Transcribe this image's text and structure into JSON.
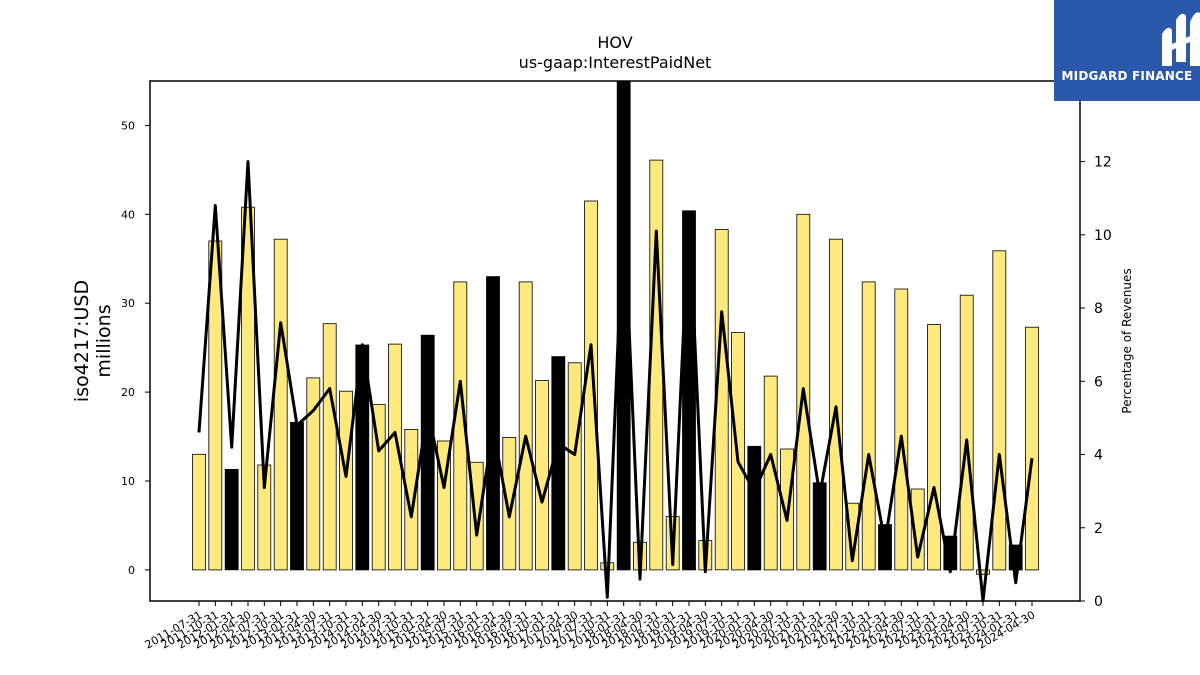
{
  "brand": {
    "name": "MIDGARD FINANCE",
    "logo_icon": "midgard-mh-monogram-icon",
    "background": "#2b58ab"
  },
  "chart_data": {
    "type": "bar",
    "title": "HOV",
    "subtitle": "us-gaap:InterestPaidNet",
    "ylabel": "iso4217:USD\nmillions",
    "y2label": "Percentage of Revenues",
    "ylim": [
      -3.5,
      55
    ],
    "y2lim": [
      0,
      14.2
    ],
    "yticks": [
      0,
      10,
      20,
      30,
      40,
      50
    ],
    "y2ticks": [
      0,
      2,
      4,
      6,
      8,
      10,
      12
    ],
    "grid": false,
    "legend": "none",
    "categories": [
      "2011-07-31",
      "2011-10-31",
      "2012-01-31",
      "2012-04-30",
      "2012-07-31",
      "2012-10-31",
      "2013-01-31",
      "2013-04-30",
      "2013-07-31",
      "2013-10-31",
      "2014-01-31",
      "2014-04-30",
      "2014-07-31",
      "2014-10-31",
      "2015-01-31",
      "2015-04-30",
      "2015-07-31",
      "2015-10-31",
      "2016-01-31",
      "2016-04-30",
      "2016-07-31",
      "2016-10-31",
      "2017-01-31",
      "2017-04-30",
      "2017-07-31",
      "2017-10-31",
      "2018-01-31",
      "2018-04-30",
      "2018-07-31",
      "2018-10-31",
      "2019-01-31",
      "2019-04-30",
      "2019-07-31",
      "2019-10-31",
      "2020-01-31",
      "2020-04-30",
      "2020-07-31",
      "2020-10-31",
      "2021-01-31",
      "2021-04-30",
      "2021-07-31",
      "2021-10-31",
      "2022-01-31",
      "2022-04-30",
      "2022-07-31",
      "2022-10-31",
      "2023-01-31",
      "2023-04-30",
      "2023-07-31",
      "2023-10-31",
      "2024-01-31",
      "2024-04-30"
    ],
    "series": [
      {
        "kind": "bar",
        "values": [
          13.0,
          37.0,
          11.3,
          40.8,
          11.8,
          37.2,
          16.6,
          21.6,
          27.7,
          20.1,
          25.3,
          18.6,
          25.4,
          15.8,
          26.4,
          14.5,
          32.4,
          12.1,
          33.0,
          14.9,
          32.4,
          21.3,
          24.0,
          23.3,
          41.5,
          0.8,
          55.5,
          3.1,
          46.1,
          6.0,
          40.4,
          3.3,
          38.3,
          26.7,
          13.9,
          21.8,
          13.6,
          40.0,
          9.8,
          37.2,
          7.5,
          32.4,
          5.1,
          31.6,
          9.1,
          27.6,
          3.8,
          30.9,
          -0.5,
          35.9,
          2.8,
          27.3
        ],
        "highlighted": [
          false,
          false,
          true,
          false,
          false,
          false,
          true,
          false,
          false,
          false,
          true,
          false,
          false,
          false,
          true,
          false,
          false,
          false,
          true,
          false,
          false,
          false,
          true,
          false,
          false,
          false,
          true,
          false,
          false,
          false,
          true,
          false,
          false,
          false,
          true,
          false,
          false,
          false,
          true,
          false,
          false,
          false,
          true,
          false,
          false,
          false,
          true,
          false,
          false,
          false,
          true,
          false
        ]
      },
      {
        "kind": "line",
        "axis": "right",
        "values": [
          4.6,
          10.8,
          4.2,
          12.0,
          3.1,
          7.6,
          4.8,
          5.2,
          5.8,
          3.4,
          7.0,
          4.1,
          4.6,
          2.3,
          5.2,
          3.1,
          6.0,
          1.8,
          4.7,
          2.3,
          4.5,
          2.7,
          4.3,
          4.0,
          7.0,
          0.1,
          10.8,
          0.6,
          10.1,
          1.0,
          10.6,
          0.8,
          7.9,
          3.8,
          3.0,
          4.0,
          2.2,
          5.8,
          2.9,
          5.3,
          1.1,
          4.0,
          1.6,
          4.5,
          1.2,
          3.1,
          0.8,
          4.4,
          0.0,
          4.0,
          0.5,
          3.9
        ]
      }
    ],
    "colors": {
      "bar": "#fde97d",
      "bar_highlight": "#000000",
      "line": "#000000"
    }
  }
}
